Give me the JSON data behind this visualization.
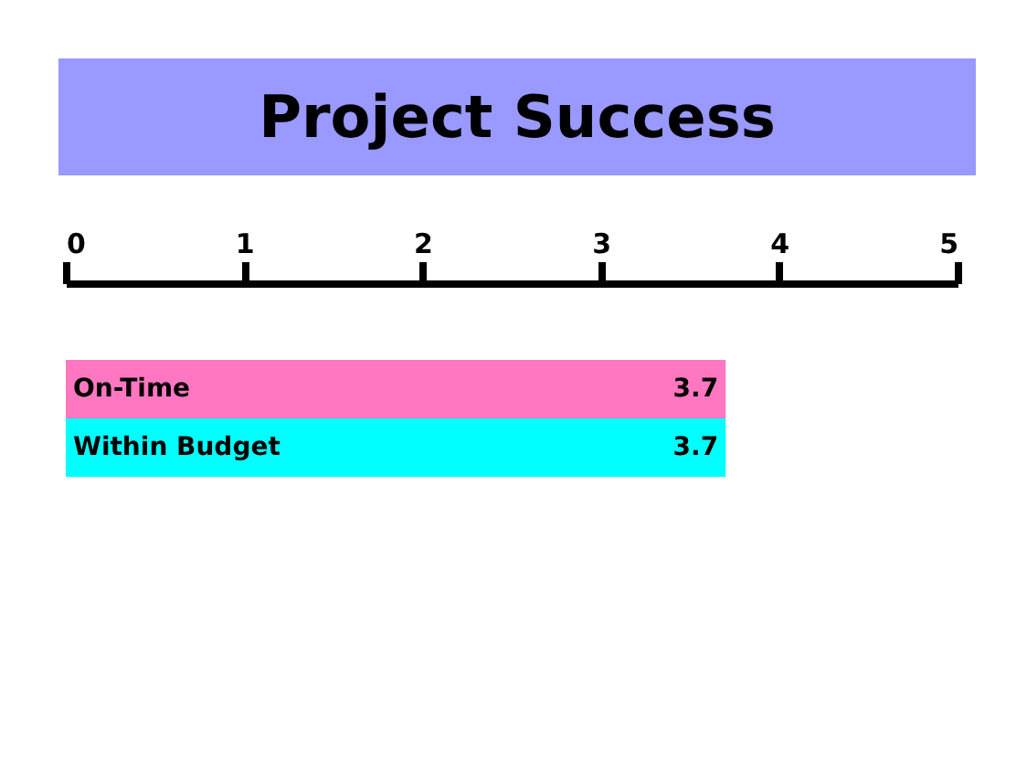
{
  "chart_data": {
    "type": "bar",
    "title": "Project Success",
    "orientation": "horizontal",
    "categories": [
      "On-Time",
      "Within Budget"
    ],
    "values": [
      3.7,
      3.7
    ],
    "colors": [
      "#ff77c1",
      "#00ffff"
    ],
    "xlim": [
      0,
      5
    ],
    "xticks": [
      0,
      1,
      2,
      3,
      4,
      5
    ],
    "data_labels": true
  }
}
